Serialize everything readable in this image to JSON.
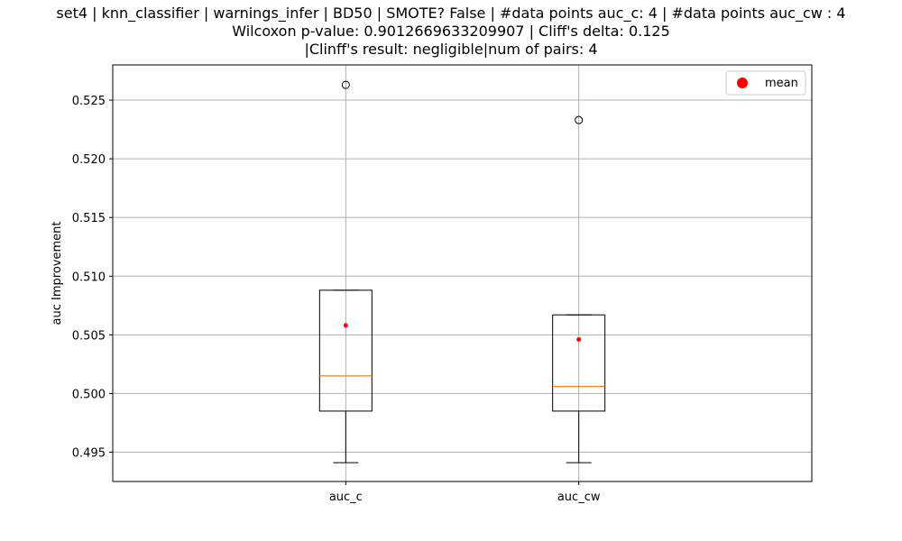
{
  "title_lines": [
    "set4 | knn_classifier | warnings_infer | BD50 | SMOTE? False | #data points auc_c: 4 | #data points auc_cw : 4",
    "Wilcoxon p-value: 0.9012669633209907 | Cliff's delta: 0.125",
    "|Clinff's result: negligible|num of pairs: 4"
  ],
  "colors": {
    "box": "#000000",
    "median": "#ff7f0e",
    "mean": "#ff0000",
    "grid": "#b0b0b0"
  },
  "chart_data": {
    "type": "box",
    "ylabel": "auc Improvement",
    "ylim": [
      0.4925,
      0.528
    ],
    "yticks": [
      "0.495",
      "0.500",
      "0.505",
      "0.510",
      "0.515",
      "0.520",
      "0.525"
    ],
    "grid": true,
    "legend": {
      "placement": "top-right",
      "entries": [
        "mean"
      ]
    },
    "series": [
      {
        "category": "auc_c",
        "whisker_low": 0.4941,
        "q1": 0.4985,
        "median": 0.5015,
        "q3": 0.5088,
        "whisker_high": 0.5088,
        "mean": 0.5058,
        "outliers": [
          0.5263
        ]
      },
      {
        "category": "auc_cw",
        "whisker_low": 0.4941,
        "q1": 0.4985,
        "median": 0.5006,
        "q3": 0.5067,
        "whisker_high": 0.5067,
        "mean": 0.5046,
        "outliers": [
          0.5233
        ]
      }
    ]
  }
}
